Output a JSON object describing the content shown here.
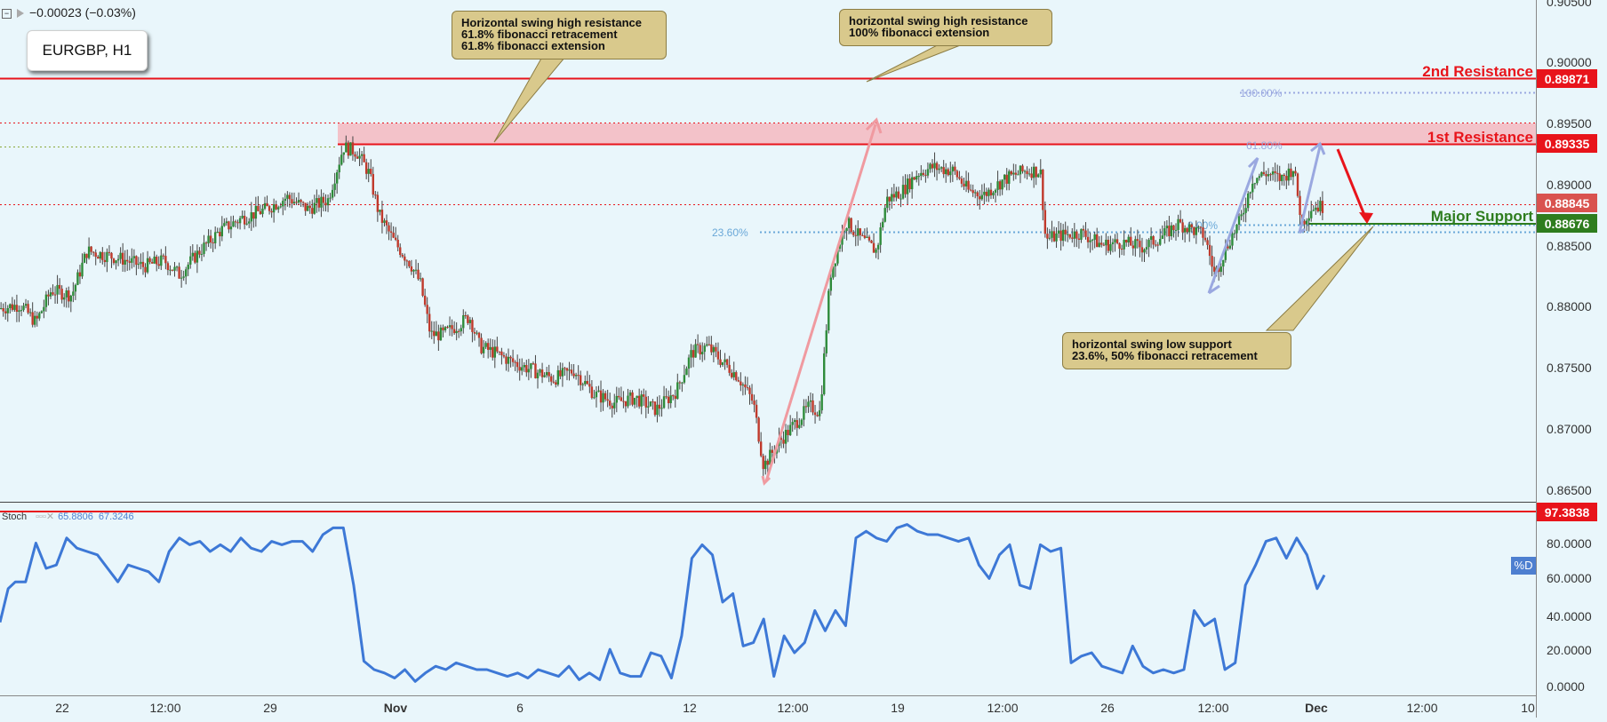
{
  "header": {
    "change": "−0.00023 (−0.03%)",
    "symbol": "EURGBP, H1"
  },
  "annotations": {
    "note1": "Horizontal swing high resistance\n61.8% fibonacci retracement\n61.8% fibonacci extension",
    "note2": "horizontal swing high resistance\n100% fibonacci extension",
    "note3": "horizontal swing low support\n23.6%, 50% fibonacci retracement"
  },
  "levels": {
    "r2_label": "2nd Resistance",
    "r2_value": "0.89871",
    "r1_label": "1st Resistance",
    "r1_value": "0.89335",
    "current_value": "0.88845",
    "support_label": "Major Support",
    "support_value": "0.88676",
    "fib_100": "100.00%",
    "fib_618": "61.80%",
    "fib_236": "23.60%",
    "fib_0": "0.00%"
  },
  "colors": {
    "resistance": "#e8141b",
    "support": "#2e7d1e",
    "zone": "#f4b8bf",
    "stoch": "#3d78d6",
    "candle_up": "#2e8b3a",
    "candle_down": "#c0392b",
    "fib": "#9aa8e0",
    "arrow_up": "#f09aa0"
  },
  "stoch": {
    "label": "Stoch",
    "k_value": "65.8806",
    "d_value": "67.3246",
    "badge": "%D",
    "upper_value": "97.3838"
  },
  "chart_data": [
    {
      "type": "candlestick",
      "title": "EURGBP, H1",
      "ylim": [
        0.8635,
        0.9055
      ],
      "y_ticks": [
        "0.90500",
        "0.90000",
        "0.89500",
        "0.89000",
        "0.88500",
        "0.88000",
        "0.87500",
        "0.87000",
        "0.86500"
      ],
      "x_ticks": [
        "22",
        "12:00",
        "29",
        "Nov",
        "6",
        "12",
        "12:00",
        "19",
        "12:00",
        "26",
        "12:00",
        "Dec",
        "12:00",
        "10"
      ],
      "price_path": [
        [
          0,
          0.8797
        ],
        [
          20,
          0.88
        ],
        [
          35,
          0.8785
        ],
        [
          50,
          0.8812
        ],
        [
          70,
          0.8808
        ],
        [
          85,
          0.8845
        ],
        [
          100,
          0.8842
        ],
        [
          120,
          0.8838
        ],
        [
          140,
          0.8832
        ],
        [
          160,
          0.8837
        ],
        [
          175,
          0.8825
        ],
        [
          195,
          0.8845
        ],
        [
          215,
          0.8862
        ],
        [
          235,
          0.8872
        ],
        [
          260,
          0.888
        ],
        [
          280,
          0.889
        ],
        [
          300,
          0.888
        ],
        [
          320,
          0.8888
        ],
        [
          335,
          0.8932
        ],
        [
          348,
          0.8928
        ],
        [
          360,
          0.891
        ],
        [
          370,
          0.8875
        ],
        [
          385,
          0.8852
        ],
        [
          400,
          0.8835
        ],
        [
          410,
          0.8818
        ],
        [
          420,
          0.8775
        ],
        [
          432,
          0.8775
        ],
        [
          445,
          0.8782
        ],
        [
          458,
          0.879
        ],
        [
          468,
          0.8765
        ],
        [
          482,
          0.876
        ],
        [
          500,
          0.8752
        ],
        [
          520,
          0.8745
        ],
        [
          540,
          0.8738
        ],
        [
          560,
          0.8745
        ],
        [
          580,
          0.8725
        ],
        [
          600,
          0.8718
        ],
        [
          620,
          0.8722
        ],
        [
          640,
          0.8712
        ],
        [
          660,
          0.8728
        ],
        [
          675,
          0.876
        ],
        [
          690,
          0.8765
        ],
        [
          705,
          0.8752
        ],
        [
          720,
          0.874
        ],
        [
          735,
          0.8718
        ],
        [
          745,
          0.8665
        ],
        [
          760,
          0.8685
        ],
        [
          775,
          0.87
        ],
        [
          790,
          0.8715
        ],
        [
          800,
          0.871
        ],
        [
          810,
          0.8825
        ],
        [
          825,
          0.887
        ],
        [
          840,
          0.8855
        ],
        [
          855,
          0.8845
        ],
        [
          865,
          0.8888
        ],
        [
          880,
          0.8895
        ],
        [
          895,
          0.891
        ],
        [
          910,
          0.8915
        ],
        [
          930,
          0.8912
        ],
        [
          945,
          0.8895
        ],
        [
          960,
          0.8892
        ],
        [
          980,
          0.8905
        ],
        [
          1000,
          0.8912
        ],
        [
          1015,
          0.8912
        ],
        [
          1020,
          0.8855
        ],
        [
          1035,
          0.8858
        ],
        [
          1055,
          0.886
        ],
        [
          1075,
          0.885
        ],
        [
          1095,
          0.8852
        ],
        [
          1115,
          0.8848
        ],
        [
          1135,
          0.8858
        ],
        [
          1150,
          0.8868
        ],
        [
          1165,
          0.8862
        ],
        [
          1175,
          0.8858
        ],
        [
          1185,
          0.8825
        ],
        [
          1200,
          0.8855
        ],
        [
          1210,
          0.887
        ],
        [
          1222,
          0.8905
        ],
        [
          1235,
          0.891
        ],
        [
          1250,
          0.8905
        ],
        [
          1262,
          0.8915
        ],
        [
          1270,
          0.8868
        ],
        [
          1280,
          0.8882
        ],
        [
          1290,
          0.8882
        ]
      ]
    },
    {
      "type": "line",
      "title": "Stoch",
      "ylim": [
        0,
        100
      ],
      "y_ticks": [
        "80.0000",
        "60.0000",
        "40.0000",
        "20.0000",
        "0.0000"
      ],
      "x": [
        0,
        8,
        15,
        25,
        35,
        45,
        55,
        65,
        75,
        85,
        95,
        105,
        115,
        125,
        135,
        145,
        155,
        165,
        175,
        185,
        195,
        205,
        215,
        225,
        235,
        245,
        255,
        265,
        275,
        285,
        295,
        305,
        315,
        325,
        335,
        345,
        355,
        365,
        375,
        385,
        395,
        405,
        415,
        425,
        435,
        445,
        455,
        465,
        475,
        485,
        495,
        505,
        515,
        525,
        535,
        545,
        555,
        565,
        575,
        585,
        595,
        605,
        615,
        625,
        635,
        645,
        655,
        665,
        675,
        685,
        695,
        705,
        715,
        725,
        735,
        745,
        755,
        765,
        775,
        785,
        795,
        805,
        815,
        825,
        835,
        845,
        855,
        865,
        875,
        885,
        895,
        905,
        915,
        925,
        935,
        945,
        955,
        965,
        975,
        985,
        995,
        1005,
        1015,
        1025,
        1035,
        1045,
        1055,
        1065,
        1075,
        1085,
        1095,
        1105,
        1115,
        1125,
        1135,
        1145,
        1155,
        1165,
        1175,
        1185,
        1195,
        1205,
        1215,
        1225,
        1235,
        1245,
        1255,
        1265,
        1275,
        1285,
        1292
      ],
      "values": [
        38,
        58,
        62,
        62,
        85,
        70,
        72,
        88,
        82,
        80,
        78,
        70,
        62,
        72,
        70,
        68,
        62,
        80,
        88,
        84,
        86,
        80,
        84,
        80,
        88,
        82,
        80,
        86,
        84,
        86,
        86,
        80,
        90,
        94,
        94,
        60,
        15,
        10,
        8,
        5,
        10,
        3,
        8,
        12,
        10,
        14,
        12,
        10,
        10,
        8,
        6,
        8,
        5,
        10,
        8,
        6,
        12,
        4,
        8,
        4,
        22,
        8,
        6,
        6,
        20,
        18,
        5,
        30,
        76,
        84,
        78,
        50,
        55,
        24,
        26,
        40,
        6,
        30,
        20,
        26,
        45,
        33,
        45,
        36,
        88,
        92,
        88,
        86,
        94,
        96,
        92,
        90,
        90,
        88,
        86,
        88,
        72,
        64,
        78,
        84,
        60,
        58,
        84,
        80,
        82,
        14,
        18,
        20,
        12,
        10,
        8,
        24,
        12,
        8,
        10,
        8,
        10,
        45,
        36,
        40,
        10,
        14,
        60,
        72,
        86,
        88,
        76,
        88,
        78,
        58,
        66
      ]
    }
  ]
}
